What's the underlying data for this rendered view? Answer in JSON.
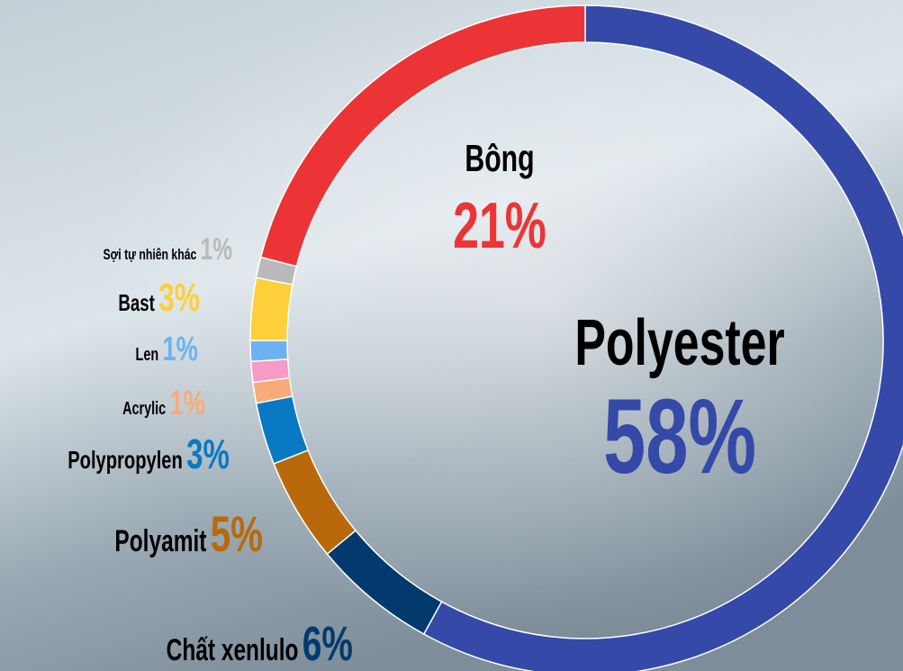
{
  "chart_data": {
    "type": "donut",
    "categories": [
      "Polyester",
      "Chất xenlulo",
      "Polyamit",
      "Polypropylen",
      "Acrylic",
      null,
      "Len",
      "Bast",
      "Sợi tự nhiên khác",
      "Bông"
    ],
    "values": [
      58,
      6,
      5,
      3,
      1,
      1,
      1,
      3,
      1,
      21
    ],
    "value_labels": [
      "58%",
      "6%",
      "5%",
      "3%",
      "1%",
      null,
      "1%",
      "3%",
      "1%",
      "21%"
    ],
    "colors": [
      "#3549a8",
      "#023a6e",
      "#b9690b",
      "#0a79c4",
      "#f9aa7a",
      "#f79ac4",
      "#6cb2f2",
      "#fdcf3a",
      "#b9b9b9",
      "#ec3437"
    ]
  }
}
